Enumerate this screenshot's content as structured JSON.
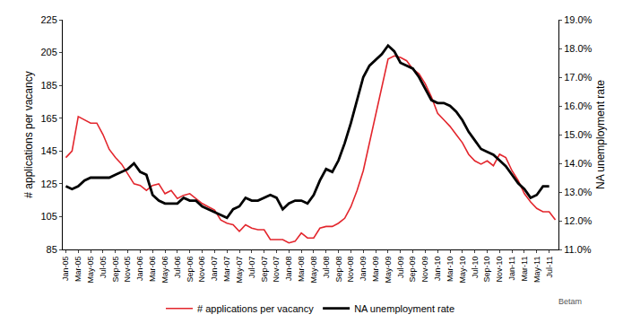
{
  "chart_data": {
    "type": "line",
    "categories": [
      "Jan-05",
      null,
      "Mar-05",
      null,
      "May-05",
      null,
      "Jul-05",
      null,
      "Sep-05",
      null,
      "Nov-05",
      null,
      "Jan-06",
      null,
      "Mar-06",
      null,
      "May-06",
      null,
      "Jul-06",
      null,
      "Sep-06",
      null,
      "Nov-06",
      null,
      "Jan-07",
      null,
      "Mar-07",
      null,
      "May-07",
      null,
      "Jul-07",
      null,
      "Sep-07",
      null,
      "Nov-07",
      null,
      "Jan-08",
      null,
      "Mar-08",
      null,
      "May-08",
      null,
      "Jul-08",
      null,
      "Sep-08",
      null,
      "Nov-08",
      null,
      "Jan-09",
      null,
      "Mar-09",
      null,
      "May-09",
      null,
      "Jul-09",
      null,
      "Sep-09",
      null,
      "Nov-09",
      null,
      "Jan-10",
      null,
      "Mar-10",
      null,
      "May-10",
      null,
      "Jul-10",
      null,
      "Sep-10",
      null,
      "Nov-10",
      null,
      "Jan-11",
      null,
      "Mar-11",
      null,
      "May-11",
      null,
      "Jul-11",
      null
    ],
    "series": [
      {
        "name": "# applications per vacancy",
        "color": "#e3262d",
        "axis": "y",
        "values": [
          141,
          145,
          166,
          164,
          162,
          162,
          155,
          146,
          141,
          137,
          131,
          125,
          124,
          121,
          124,
          125,
          119,
          121,
          116,
          118,
          119,
          116,
          113,
          111,
          109,
          103,
          101,
          100,
          96,
          100,
          98,
          97,
          97,
          91,
          91,
          91,
          89,
          90,
          95,
          92,
          92,
          98,
          99,
          99,
          101,
          104,
          111,
          121,
          133,
          150,
          168,
          185,
          201,
          203,
          202,
          200,
          195,
          192,
          186,
          178,
          168,
          164,
          160,
          155,
          150,
          143,
          139,
          137,
          139,
          136,
          143,
          141,
          133,
          127,
          119,
          114,
          110,
          108,
          108,
          103
        ]
      },
      {
        "name": "NA unemployment rate",
        "color": "#000000",
        "axis": "y2",
        "values": [
          13.2,
          13.1,
          13.2,
          13.4,
          13.5,
          13.5,
          13.5,
          13.5,
          13.6,
          13.7,
          13.8,
          14.0,
          13.7,
          13.6,
          12.9,
          12.7,
          12.6,
          12.6,
          12.6,
          12.8,
          12.7,
          12.7,
          12.5,
          12.4,
          12.3,
          12.2,
          12.1,
          12.4,
          12.5,
          12.8,
          12.7,
          12.7,
          12.8,
          12.9,
          12.8,
          12.4,
          12.6,
          12.7,
          12.7,
          12.6,
          12.9,
          13.4,
          13.8,
          13.7,
          14.1,
          14.7,
          15.4,
          16.2,
          17.0,
          17.4,
          17.6,
          17.8,
          18.1,
          17.9,
          17.5,
          17.4,
          17.3,
          17.0,
          16.6,
          16.2,
          16.1,
          16.1,
          16.0,
          15.8,
          15.5,
          15.1,
          14.8,
          14.5,
          14.4,
          14.3,
          14.1,
          13.9,
          13.6,
          13.3,
          13.1,
          12.8,
          12.9,
          13.2,
          13.2,
          null
        ]
      }
    ],
    "ylabel": "# applications per vacancy",
    "y2label": "NA unemployment rate",
    "ylim": [
      85,
      225
    ],
    "yticks": [
      85,
      105,
      125,
      145,
      165,
      185,
      205,
      225
    ],
    "y2lim": [
      11,
      19
    ],
    "y2ticks": [
      {
        "value": 11,
        "label": "11.0%"
      },
      {
        "value": 12,
        "label": "12.0%"
      },
      {
        "value": 13,
        "label": "13.0%"
      },
      {
        "value": 14,
        "label": "14.0%"
      },
      {
        "value": 15,
        "label": "15.0%"
      },
      {
        "value": 16,
        "label": "16.0%"
      },
      {
        "value": 17,
        "label": "17.0%"
      },
      {
        "value": 18,
        "label": "18.0%"
      },
      {
        "value": 19,
        "label": "19.0%"
      }
    ],
    "grid": false,
    "legend": "bottom",
    "annotations": [
      {
        "text": "Betam"
      }
    ]
  }
}
